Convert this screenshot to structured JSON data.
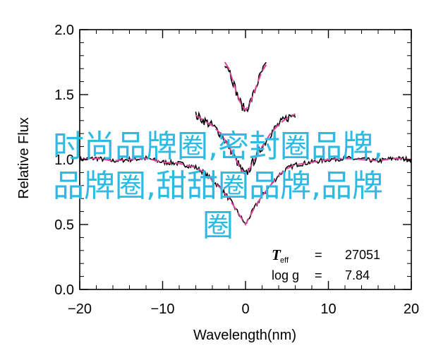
{
  "chart_data": {
    "type": "line",
    "xlabel": "Wavelength(nm)",
    "ylabel": "Relative Flux",
    "xlim": [
      -20,
      20
    ],
    "ylim": [
      0.0,
      2.0
    ],
    "xticks": [
      -20,
      -10,
      0,
      10,
      20
    ],
    "yticks": [
      0.0,
      0.5,
      1.0,
      1.5,
      2.0
    ],
    "xtick_labels": [
      "−20",
      "−10",
      "0",
      "10",
      "20"
    ],
    "ytick_labels": [
      "0.0",
      "0.5",
      "1.0",
      "1.5",
      "2.0"
    ],
    "colors": {
      "observed": "#000000",
      "model": "#e0449c"
    },
    "series": [
      {
        "offset": 0.0,
        "x": [
          -20,
          -18,
          -16,
          -14,
          -12,
          -10,
          -8,
          -6,
          -5,
          -4,
          -3,
          -2,
          -1,
          -0.5,
          0,
          0.5,
          1,
          2,
          3,
          4,
          5,
          6,
          8,
          10,
          12,
          14,
          16,
          18,
          20
        ],
        "y": [
          1.0,
          1.01,
          0.99,
          1.0,
          1.01,
          0.98,
          0.97,
          0.94,
          0.9,
          0.84,
          0.78,
          0.7,
          0.6,
          0.55,
          0.5,
          0.56,
          0.62,
          0.72,
          0.8,
          0.88,
          0.93,
          0.96,
          0.98,
          1.0,
          1.01,
          1.0,
          0.99,
          1.01,
          1.0
        ]
      },
      {
        "offset": 0.25,
        "x": [
          -6,
          -5,
          -4,
          -3,
          -2,
          -1,
          -0.5,
          0,
          0.5,
          1,
          2,
          3,
          4,
          5,
          6
        ],
        "y": [
          1.34,
          1.3,
          1.26,
          1.2,
          1.1,
          0.98,
          0.92,
          0.88,
          0.93,
          0.99,
          1.1,
          1.2,
          1.27,
          1.32,
          1.35
        ]
      },
      {
        "offset": 0.5,
        "x": [
          -2.5,
          -2,
          -1.5,
          -1,
          -0.5,
          0,
          0.5,
          1,
          1.5,
          2,
          2.5
        ],
        "y": [
          1.75,
          1.7,
          1.6,
          1.5,
          1.42,
          1.38,
          1.43,
          1.51,
          1.6,
          1.68,
          1.73
        ]
      }
    ],
    "annotation": {
      "teff_symbol": "T",
      "teff_sub": "eff",
      "teff_eq": "=",
      "teff_value": "27051",
      "logg_symbol": "log g",
      "logg_eq": "=",
      "logg_value": "7.84"
    }
  },
  "overlay_text": "时尚品牌圈,密封圈品牌,品牌圈,甜甜圈品牌,品牌圈"
}
